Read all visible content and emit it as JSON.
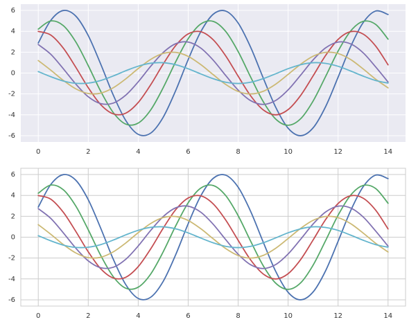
{
  "chart_data": [
    {
      "type": "line",
      "style": "darkgrid",
      "grid": true,
      "x": [
        0,
        0.5,
        1,
        1.5,
        2,
        2.5,
        3,
        3.5,
        4,
        4.5,
        5,
        5.5,
        6,
        6.5,
        7,
        7.5,
        8,
        8.5,
        9,
        9.5,
        10,
        10.5,
        11,
        11.5,
        12,
        12.5,
        13,
        13.5,
        14
      ],
      "xlim": [
        -0.7,
        14.7
      ],
      "xticks": [
        0,
        2,
        4,
        6,
        8,
        10,
        12,
        14
      ],
      "ylim": [
        -6.6,
        6.6
      ],
      "yticks": [
        -6,
        -4,
        -2,
        0,
        2,
        4,
        6
      ],
      "series": [
        {
          "color": "#4C72B0",
          "values": [
            2.88,
            5.05,
            5.99,
            5.46,
            3.59,
            0.85,
            -2.1,
            -4.54,
            -5.87,
            -5.75,
            -4.23,
            -1.68,
            1.29,
            3.94,
            5.63,
            5.94,
            4.79,
            2.47,
            -0.45,
            -3.26,
            -5.28,
            -6.0,
            -5.25,
            -3.22,
            -0.4,
            2.52,
            4.82,
            5.94,
            5.61
          ]
        },
        {
          "color": "#55A868",
          "values": [
            4.21,
            4.99,
            4.55,
            2.99,
            0.71,
            -1.75,
            -3.78,
            -4.89,
            -4.79,
            -3.53,
            -1.4,
            1.08,
            3.29,
            4.69,
            4.95,
            3.99,
            2.06,
            -0.38,
            -2.72,
            -4.4,
            -5.0,
            -4.38,
            -2.68,
            -0.33,
            2.1,
            4.02,
            4.95,
            4.67,
            3.25
          ]
        },
        {
          "color": "#C44E52",
          "values": [
            3.99,
            3.64,
            2.39,
            0.56,
            -1.4,
            -3.03,
            -3.91,
            -3.84,
            -2.82,
            -1.12,
            0.86,
            2.63,
            3.75,
            3.96,
            3.19,
            1.65,
            -0.3,
            -2.18,
            -3.52,
            -4.0,
            -3.5,
            -2.15,
            -0.27,
            1.68,
            3.22,
            3.96,
            3.74,
            2.6,
            0.79
          ]
        },
        {
          "color": "#8172B2",
          "values": [
            2.73,
            1.8,
            0.42,
            -1.05,
            -2.27,
            -2.93,
            -2.88,
            -2.12,
            -0.84,
            0.65,
            1.97,
            2.81,
            2.97,
            2.4,
            1.24,
            -0.23,
            -1.63,
            -2.64,
            -3.0,
            -2.63,
            -1.61,
            -0.2,
            1.26,
            2.41,
            2.97,
            2.8,
            1.95,
            0.6,
            -0.86
          ]
        },
        {
          "color": "#CCB974",
          "values": [
            1.2,
            0.28,
            -0.7,
            -1.51,
            -1.96,
            -1.92,
            -1.41,
            -0.56,
            0.43,
            1.31,
            1.88,
            1.98,
            1.6,
            0.82,
            -0.15,
            -1.09,
            -1.76,
            -2.0,
            -1.75,
            -1.07,
            -0.13,
            0.84,
            1.61,
            1.98,
            1.87,
            1.3,
            0.4,
            -0.58,
            -1.42
          ]
        },
        {
          "color": "#64B5CD",
          "values": [
            0.14,
            -0.35,
            -0.76,
            -0.98,
            -0.96,
            -0.71,
            -0.28,
            0.22,
            0.66,
            0.94,
            0.99,
            0.8,
            0.41,
            -0.08,
            -0.54,
            -0.88,
            -1.0,
            -0.88,
            -0.54,
            -0.07,
            0.42,
            0.8,
            0.99,
            0.93,
            0.65,
            0.2,
            -0.29,
            -0.71,
            -0.96
          ]
        }
      ]
    },
    {
      "type": "line",
      "style": "whitegrid",
      "grid": true,
      "x": [
        0,
        0.5,
        1,
        1.5,
        2,
        2.5,
        3,
        3.5,
        4,
        4.5,
        5,
        5.5,
        6,
        6.5,
        7,
        7.5,
        8,
        8.5,
        9,
        9.5,
        10,
        10.5,
        11,
        11.5,
        12,
        12.5,
        13,
        13.5,
        14
      ],
      "xlim": [
        -0.7,
        14.7
      ],
      "xticks": [
        0,
        2,
        4,
        6,
        8,
        10,
        12,
        14
      ],
      "ylim": [
        -6.6,
        6.6
      ],
      "yticks": [
        -6,
        -4,
        -2,
        0,
        2,
        4,
        6
      ],
      "series": [
        {
          "color": "#4C72B0",
          "values": [
            2.88,
            5.05,
            5.99,
            5.46,
            3.59,
            0.85,
            -2.1,
            -4.54,
            -5.87,
            -5.75,
            -4.23,
            -1.68,
            1.29,
            3.94,
            5.63,
            5.94,
            4.79,
            2.47,
            -0.45,
            -3.26,
            -5.28,
            -6.0,
            -5.25,
            -3.22,
            -0.4,
            2.52,
            4.82,
            5.94,
            5.61
          ]
        },
        {
          "color": "#55A868",
          "values": [
            4.21,
            4.99,
            4.55,
            2.99,
            0.71,
            -1.75,
            -3.78,
            -4.89,
            -4.79,
            -3.53,
            -1.4,
            1.08,
            3.29,
            4.69,
            4.95,
            3.99,
            2.06,
            -0.38,
            -2.72,
            -4.4,
            -5.0,
            -4.38,
            -2.68,
            -0.33,
            2.1,
            4.02,
            4.95,
            4.67,
            3.25
          ]
        },
        {
          "color": "#C44E52",
          "values": [
            3.99,
            3.64,
            2.39,
            0.56,
            -1.4,
            -3.03,
            -3.91,
            -3.84,
            -2.82,
            -1.12,
            0.86,
            2.63,
            3.75,
            3.96,
            3.19,
            1.65,
            -0.3,
            -2.18,
            -3.52,
            -4.0,
            -3.5,
            -2.15,
            -0.27,
            1.68,
            3.22,
            3.96,
            3.74,
            2.6,
            0.79
          ]
        },
        {
          "color": "#8172B2",
          "values": [
            2.73,
            1.8,
            0.42,
            -1.05,
            -2.27,
            -2.93,
            -2.88,
            -2.12,
            -0.84,
            0.65,
            1.97,
            2.81,
            2.97,
            2.4,
            1.24,
            -0.23,
            -1.63,
            -2.64,
            -3.0,
            -2.63,
            -1.61,
            -0.2,
            1.26,
            2.41,
            2.97,
            2.8,
            1.95,
            0.6,
            -0.86
          ]
        },
        {
          "color": "#CCB974",
          "values": [
            1.2,
            0.28,
            -0.7,
            -1.51,
            -1.96,
            -1.92,
            -1.41,
            -0.56,
            0.43,
            1.31,
            1.88,
            1.98,
            1.6,
            0.82,
            -0.15,
            -1.09,
            -1.76,
            -2.0,
            -1.75,
            -1.07,
            -0.13,
            0.84,
            1.61,
            1.98,
            1.87,
            1.3,
            0.4,
            -0.58,
            -1.42
          ]
        },
        {
          "color": "#64B5CD",
          "values": [
            0.14,
            -0.35,
            -0.76,
            -0.98,
            -0.96,
            -0.71,
            -0.28,
            0.22,
            0.66,
            0.94,
            0.99,
            0.8,
            0.41,
            -0.08,
            -0.54,
            -0.88,
            -1.0,
            -0.88,
            -0.54,
            -0.07,
            0.42,
            0.8,
            0.99,
            0.93,
            0.65,
            0.2,
            -0.29,
            -0.71,
            -0.96
          ]
        }
      ]
    }
  ]
}
